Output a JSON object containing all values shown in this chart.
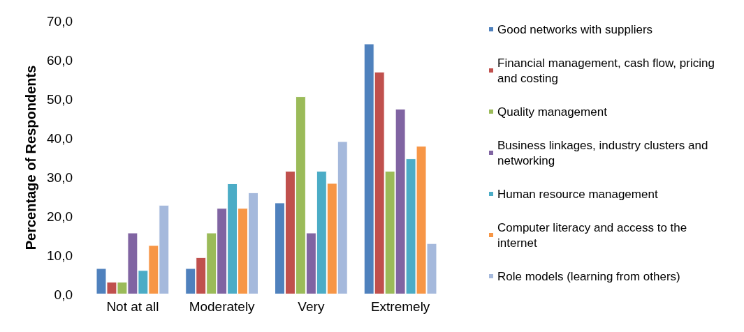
{
  "chart_data": {
    "type": "bar",
    "ylabel": "Percentage of Respondents",
    "categories": [
      "Not at all",
      "Moderately",
      "Very",
      "Extremely"
    ],
    "ylim": [
      0,
      70
    ],
    "yticks": [
      {
        "value": 0,
        "label": "0,0"
      },
      {
        "value": 10,
        "label": "10,0"
      },
      {
        "value": 20,
        "label": "20,0"
      },
      {
        "value": 30,
        "label": "30,0"
      },
      {
        "value": 40,
        "label": "40,0"
      },
      {
        "value": 50,
        "label": "50,0"
      },
      {
        "value": 60,
        "label": "60,0"
      },
      {
        "value": 70,
        "label": "70,0"
      }
    ],
    "grid": false,
    "legend": "right",
    "series": [
      {
        "name": "Good networks with suppliers",
        "color": "#4f81bd",
        "values": [
          6.7,
          6.7,
          23.5,
          64.2
        ]
      },
      {
        "name": "Financial management, cash flow, pricing and costing",
        "color": "#c0504d",
        "values": [
          3.2,
          9.5,
          31.6,
          57.0
        ]
      },
      {
        "name": "Quality management",
        "color": "#9bbb59",
        "values": [
          3.2,
          15.8,
          50.7,
          31.6
        ]
      },
      {
        "name": "Business linkages, industry clusters and networking",
        "color": "#8064a2",
        "values": [
          15.8,
          22.1,
          15.8,
          47.5
        ]
      },
      {
        "name": "Human resource management",
        "color": "#4bacc6",
        "values": [
          6.2,
          28.4,
          31.6,
          34.8
        ]
      },
      {
        "name": "Computer literacy and access to the internet",
        "color": "#f79646",
        "values": [
          12.6,
          22.1,
          28.5,
          38.0
        ]
      },
      {
        "name": "Role models (learning from others)",
        "color": "#a5b9dc",
        "values": [
          22.9,
          26.1,
          39.2,
          13.1
        ]
      }
    ]
  }
}
